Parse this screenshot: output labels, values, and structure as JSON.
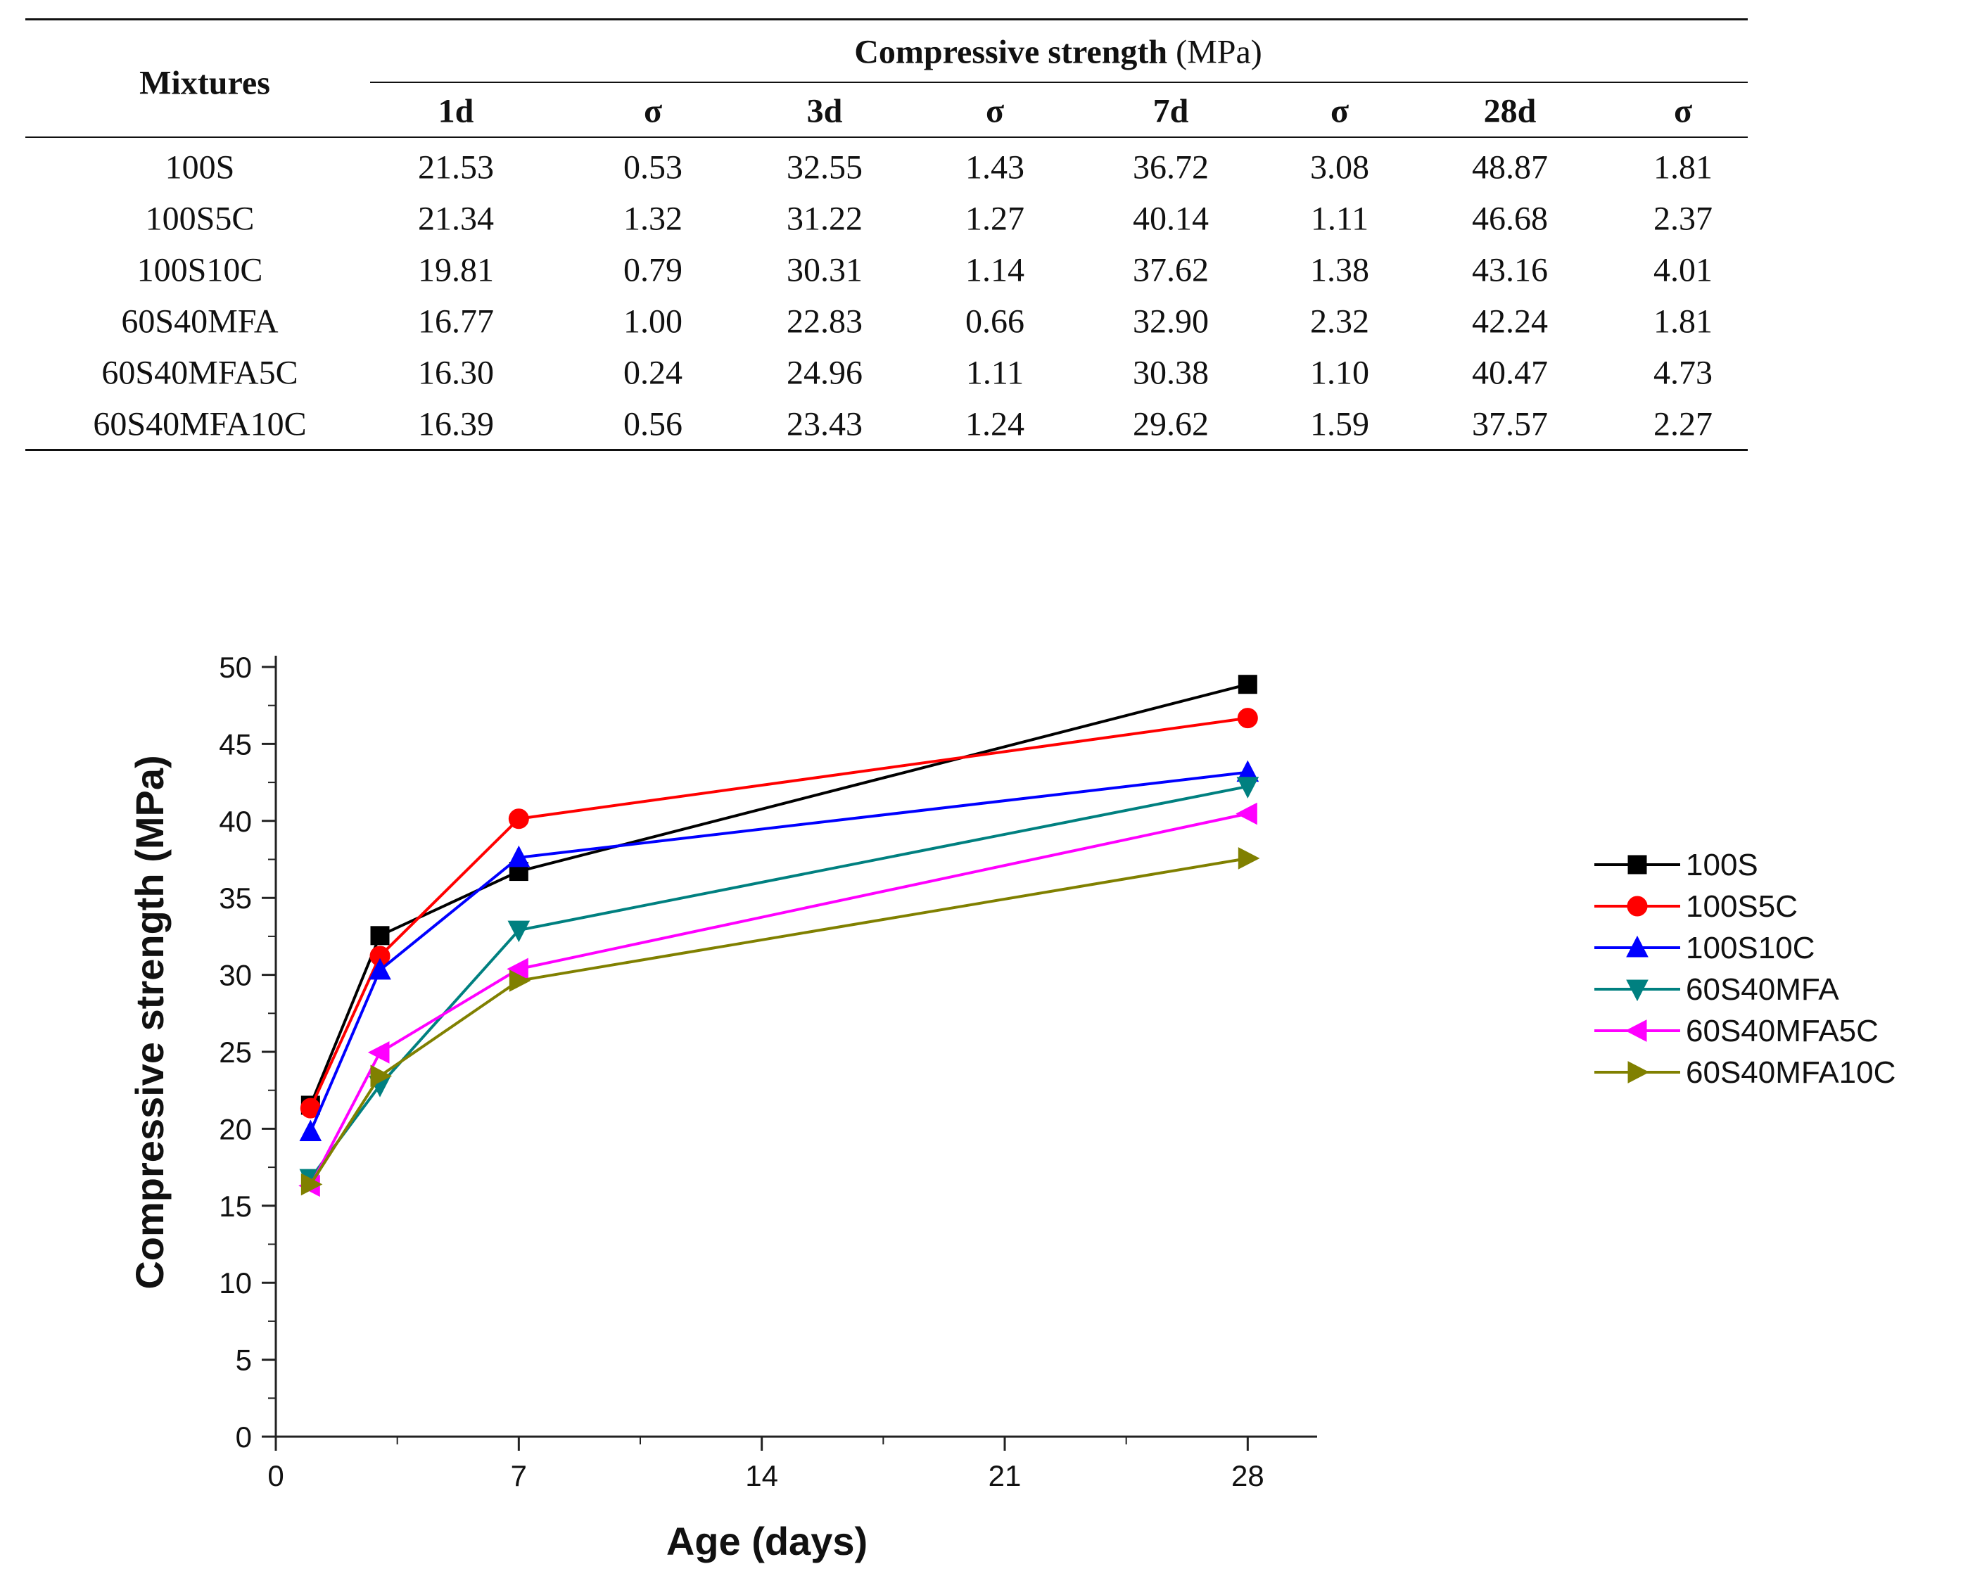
{
  "table": {
    "row_header": "Mixtures",
    "group_header_bold": "Compressive strength",
    "group_header_unit": " (MPa)",
    "columns": [
      "1d",
      "σ",
      "3d",
      "σ",
      "7d",
      "σ",
      "28d",
      "σ"
    ],
    "rows": [
      {
        "name": "100S",
        "values": [
          "21.53",
          "0.53",
          "32.55",
          "1.43",
          "36.72",
          "3.08",
          "48.87",
          "1.81"
        ]
      },
      {
        "name": "100S5C",
        "values": [
          "21.34",
          "1.32",
          "31.22",
          "1.27",
          "40.14",
          "1.11",
          "46.68",
          "2.37"
        ]
      },
      {
        "name": "100S10C",
        "values": [
          "19.81",
          "0.79",
          "30.31",
          "1.14",
          "37.62",
          "1.38",
          "43.16",
          "4.01"
        ]
      },
      {
        "name": "60S40MFA",
        "values": [
          "16.77",
          "1.00",
          "22.83",
          "0.66",
          "32.90",
          "2.32",
          "42.24",
          "1.81"
        ]
      },
      {
        "name": "60S40MFA5C",
        "values": [
          "16.30",
          "0.24",
          "24.96",
          "1.11",
          "30.38",
          "1.10",
          "40.47",
          "4.73"
        ]
      },
      {
        "name": "60S40MFA10C",
        "values": [
          "16.39",
          "0.56",
          "23.43",
          "1.24",
          "29.62",
          "1.59",
          "37.57",
          "2.27"
        ]
      }
    ]
  },
  "chart_data": {
    "type": "line",
    "title": "",
    "xlabel": "Age (days)",
    "ylabel": "Compressive strength (MPa)",
    "xlim": [
      0,
      30
    ],
    "ylim": [
      0,
      50
    ],
    "x_ticks": [
      0,
      7,
      14,
      21,
      28
    ],
    "y_ticks": [
      0,
      5,
      10,
      15,
      20,
      25,
      30,
      35,
      40,
      45,
      50
    ],
    "x": [
      1,
      3,
      7,
      28
    ],
    "grid": false,
    "legend_position": "right",
    "series": [
      {
        "name": "100S",
        "values": [
          21.53,
          32.55,
          36.72,
          48.87
        ],
        "color": "#000000",
        "marker": "square"
      },
      {
        "name": "100S5C",
        "values": [
          21.34,
          31.22,
          40.14,
          46.68
        ],
        "color": "#ff0000",
        "marker": "circle"
      },
      {
        "name": "100S10C",
        "values": [
          19.81,
          30.31,
          37.62,
          43.16
        ],
        "color": "#0000ff",
        "marker": "triangle-up"
      },
      {
        "name": "60S40MFA",
        "values": [
          16.77,
          22.83,
          32.9,
          42.24
        ],
        "color": "#008080",
        "marker": "triangle-down"
      },
      {
        "name": "60S40MFA5C",
        "values": [
          16.3,
          24.96,
          30.38,
          40.47
        ],
        "color": "#ff00ff",
        "marker": "triangle-left"
      },
      {
        "name": "60S40MFA10C",
        "values": [
          16.39,
          23.43,
          29.62,
          37.57
        ],
        "color": "#808000",
        "marker": "triangle-right"
      }
    ]
  }
}
